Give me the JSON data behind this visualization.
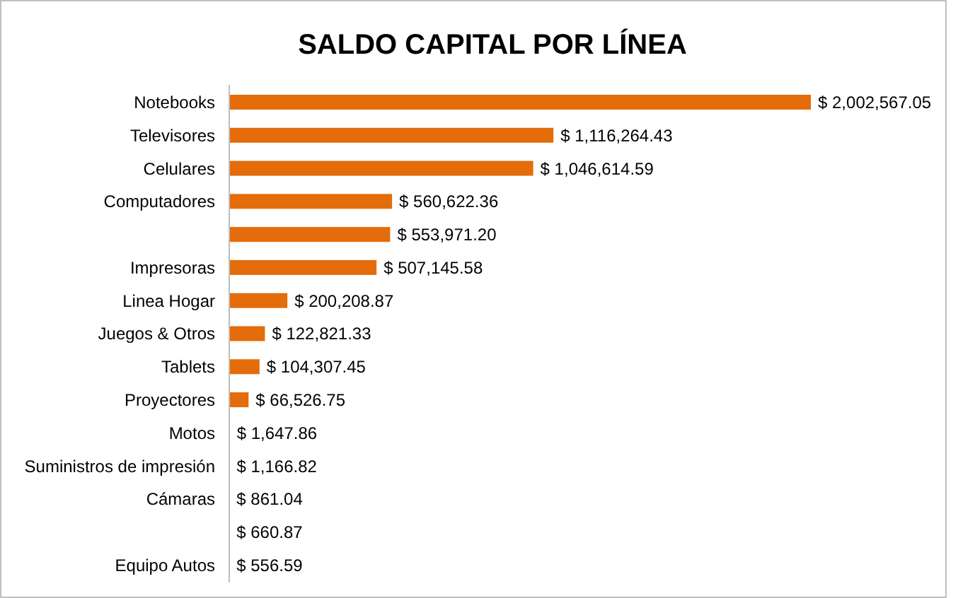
{
  "chart_data": {
    "type": "bar",
    "orientation": "horizontal",
    "title": "SALDO CAPITAL POR LÍNEA",
    "categories": [
      "Notebooks",
      "Televisores",
      "Celulares",
      "Computadores",
      null,
      "Impresoras",
      "Linea Hogar",
      "Juegos & Otros",
      "Tablets",
      "Proyectores",
      "Motos",
      "Suministros de impresión",
      "Cámaras",
      null,
      "Equipo Autos"
    ],
    "values": [
      2002567.05,
      1116264.43,
      1046614.59,
      560622.36,
      553971.2,
      507145.58,
      200208.87,
      122821.33,
      104307.45,
      66526.75,
      1647.86,
      1166.82,
      861.04,
      660.87,
      556.59
    ],
    "value_labels": [
      "$ 2,002,567.05",
      "$ 1,116,264.43",
      "$ 1,046,614.59",
      "$ 560,622.36",
      "$ 553,971.20",
      "$ 507,145.58",
      "$ 200,208.87",
      "$ 122,821.33",
      "$ 104,307.45",
      "$ 66,526.75",
      "$ 1,647.86",
      "$ 1,166.82",
      "$ 861.04",
      "$ 660.87",
      "$ 556.59"
    ],
    "color": "#e46c0a"
  }
}
